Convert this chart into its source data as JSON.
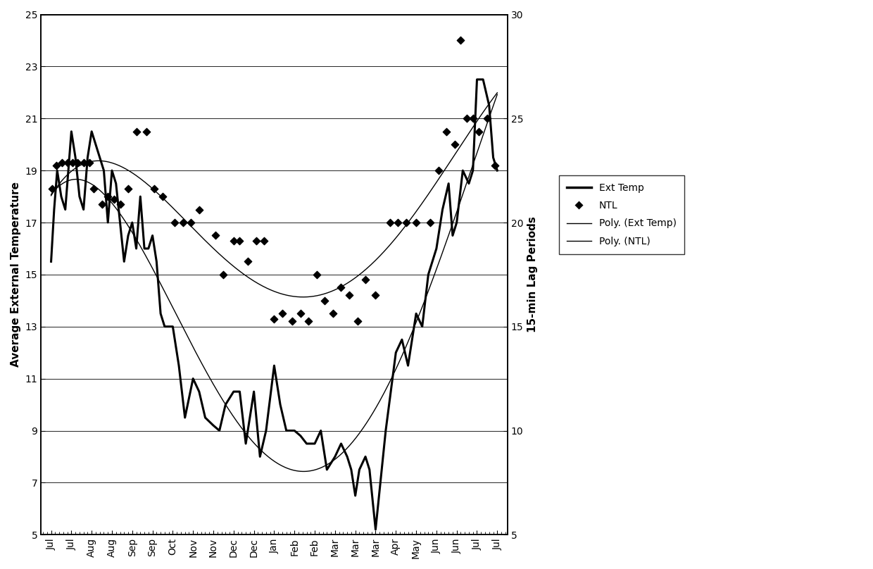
{
  "x_labels": [
    "Jul",
    "Jul",
    "Aug",
    "Aug",
    "Sep",
    "Sep",
    "Oct",
    "Nov",
    "Nov",
    "Dec",
    "Dec",
    "Jan",
    "Feb",
    "Feb",
    "Mar",
    "Mar",
    "Mar",
    "Apr",
    "May",
    "Jun",
    "Jun",
    "Jul",
    "Jul"
  ],
  "ylabel_left": "Average External Temperature",
  "ylabel_right": "15-min Lag Periods",
  "ylim_left": [
    5,
    25
  ],
  "ylim_right": [
    5,
    30
  ],
  "yticks_left": [
    5,
    7,
    9,
    11,
    13,
    15,
    17,
    19,
    21,
    23,
    25
  ],
  "yticks_right": [
    5,
    10,
    15,
    20,
    25,
    30
  ],
  "ext_temp_x": [
    0,
    0.15,
    0.3,
    0.5,
    0.7,
    0.85,
    1.0,
    1.2,
    1.4,
    1.6,
    1.8,
    2.0,
    2.2,
    2.4,
    2.6,
    2.8,
    3.0,
    3.2,
    3.4,
    3.6,
    3.8,
    4.0,
    4.2,
    4.4,
    4.6,
    4.8,
    5.0,
    5.2,
    5.4,
    5.6,
    5.8,
    6.0,
    6.3,
    6.6,
    7.0,
    7.3,
    7.6,
    8.0,
    8.3,
    8.6,
    9.0,
    9.3,
    9.6,
    10.0,
    10.3,
    10.6,
    11.0,
    11.3,
    11.6,
    12.0,
    12.3,
    12.6,
    13.0,
    13.3,
    13.6,
    14.0,
    14.3,
    14.6,
    14.8,
    15.0,
    15.2,
    15.5,
    15.7,
    16.0,
    16.5,
    17.0,
    17.3,
    17.6,
    18.0,
    18.3,
    18.6,
    19.0,
    19.3,
    19.6,
    19.8,
    20.0,
    20.3,
    20.6,
    20.8,
    21.0,
    21.3,
    21.6,
    21.8,
    22.0
  ],
  "ext_temp_y": [
    15.5,
    17.5,
    19.0,
    18.0,
    17.5,
    19.0,
    20.5,
    19.5,
    18.0,
    17.5,
    19.5,
    20.5,
    20.0,
    19.5,
    19.0,
    17.0,
    19.0,
    18.5,
    17.0,
    15.5,
    16.5,
    17.0,
    16.0,
    18.0,
    16.0,
    16.0,
    16.5,
    15.5,
    13.5,
    13.0,
    13.0,
    13.0,
    11.5,
    9.5,
    11.0,
    10.5,
    9.5,
    9.2,
    9.0,
    10.0,
    10.5,
    10.5,
    8.5,
    10.5,
    8.0,
    9.0,
    11.5,
    10.0,
    9.0,
    9.0,
    8.8,
    8.5,
    8.5,
    9.0,
    7.5,
    8.0,
    8.5,
    8.0,
    7.5,
    6.5,
    7.5,
    8.0,
    7.5,
    5.2,
    9.0,
    12.0,
    12.5,
    11.5,
    13.5,
    13.0,
    15.0,
    16.0,
    17.5,
    18.5,
    16.5,
    17.0,
    19.0,
    18.5,
    19.0,
    22.5,
    22.5,
    21.5,
    19.5,
    19.0
  ],
  "ntl_x": [
    0.05,
    0.25,
    0.55,
    0.8,
    1.05,
    1.3,
    1.6,
    1.9,
    2.1,
    2.5,
    2.8,
    3.1,
    3.4,
    3.8,
    4.2,
    4.7,
    5.1,
    5.5,
    6.1,
    6.5,
    6.9,
    7.3,
    8.1,
    8.5,
    9.0,
    9.3,
    9.7,
    10.1,
    10.5,
    11.0,
    11.4,
    11.9,
    12.3,
    12.7,
    13.1,
    13.5,
    13.9,
    14.3,
    14.7,
    15.1,
    15.5,
    16.0,
    16.7,
    17.1,
    17.5,
    18.0,
    18.7,
    19.1,
    19.5,
    19.9,
    20.2,
    20.5,
    20.8,
    21.1,
    21.5,
    21.9
  ],
  "ntl_y": [
    18.3,
    19.2,
    19.3,
    19.3,
    19.3,
    19.3,
    19.3,
    19.3,
    18.3,
    17.7,
    18.0,
    17.9,
    17.7,
    18.3,
    20.5,
    20.5,
    18.3,
    18.0,
    17.0,
    17.0,
    17.0,
    17.5,
    16.5,
    15.0,
    16.3,
    16.3,
    15.5,
    16.3,
    16.3,
    13.3,
    13.5,
    13.2,
    13.5,
    13.2,
    15.0,
    14.0,
    13.5,
    14.5,
    14.2,
    13.2,
    14.8,
    14.2,
    17.0,
    17.0,
    17.0,
    17.0,
    17.0,
    19.0,
    20.5,
    20.0,
    24.0,
    21.0,
    21.0,
    20.5,
    21.0,
    19.2
  ],
  "background_color": "#ffffff",
  "legend_entries": [
    "Ext Temp",
    "NTL",
    "Poly. (Ext Temp)",
    "Poly. (NTL)"
  ]
}
